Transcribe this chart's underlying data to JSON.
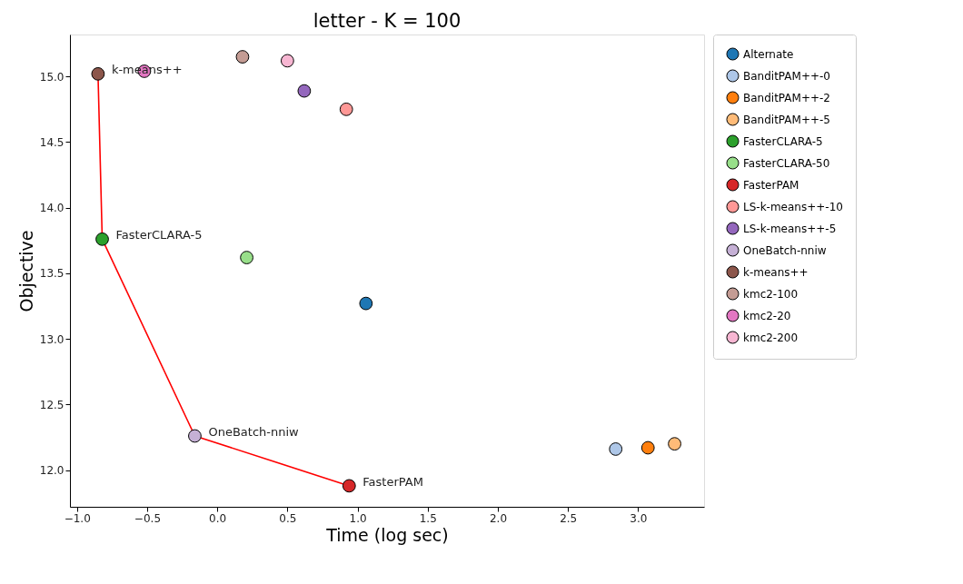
{
  "chart_data": {
    "type": "scatter",
    "title": "letter - K = 100",
    "xlabel": "Time (log sec)",
    "ylabel": "Objective",
    "xlim": [
      -1.05,
      3.47
    ],
    "ylim": [
      11.72,
      15.32
    ],
    "xticks": [
      {
        "value": -1.0,
        "label": "−1.0"
      },
      {
        "value": -0.5,
        "label": "−0.5"
      },
      {
        "value": 0.0,
        "label": "0.0"
      },
      {
        "value": 0.5,
        "label": "0.5"
      },
      {
        "value": 1.0,
        "label": "1.0"
      },
      {
        "value": 1.5,
        "label": "1.5"
      },
      {
        "value": 2.0,
        "label": "2.0"
      },
      {
        "value": 2.5,
        "label": "2.5"
      },
      {
        "value": 3.0,
        "label": "3.0"
      }
    ],
    "yticks": [
      {
        "value": 12.0,
        "label": "12.0"
      },
      {
        "value": 12.5,
        "label": "12.5"
      },
      {
        "value": 13.0,
        "label": "13.0"
      },
      {
        "value": 13.5,
        "label": "13.5"
      },
      {
        "value": 14.0,
        "label": "14.0"
      },
      {
        "value": 14.5,
        "label": "14.5"
      },
      {
        "value": 15.0,
        "label": "15.0"
      }
    ],
    "grid": false,
    "legend": "right",
    "marker": "circle",
    "series": [
      {
        "type": "line",
        "color": "#ff0000",
        "x": [
          -0.85,
          -0.82,
          -0.16,
          0.94
        ],
        "values": [
          15.02,
          13.76,
          12.26,
          11.88
        ],
        "line_style": "solid",
        "marker": "none"
      },
      {
        "name": "Alternate",
        "color": "#1f77b4",
        "x": [
          1.06
        ],
        "values": [
          13.27
        ]
      },
      {
        "name": "BanditPAM++-0",
        "color": "#aec7e8",
        "x": [
          2.84
        ],
        "values": [
          12.16
        ]
      },
      {
        "name": "BanditPAM++-2",
        "color": "#ff7f0e",
        "x": [
          3.07
        ],
        "values": [
          12.17
        ]
      },
      {
        "name": "BanditPAM++-5",
        "color": "#ffbb78",
        "x": [
          3.26
        ],
        "values": [
          12.2
        ]
      },
      {
        "name": "FasterCLARA-5",
        "color": "#2ca02c",
        "x": [
          -0.82
        ],
        "values": [
          13.76
        ]
      },
      {
        "name": "FasterCLARA-50",
        "color": "#98df8a",
        "x": [
          0.21
        ],
        "values": [
          13.62
        ]
      },
      {
        "name": "FasterPAM",
        "color": "#d62728",
        "x": [
          0.94
        ],
        "values": [
          11.88
        ]
      },
      {
        "name": "LS-k-means++-10",
        "color": "#ff9896",
        "x": [
          0.92
        ],
        "values": [
          14.75
        ]
      },
      {
        "name": "LS-k-means++-5",
        "color": "#9467bd",
        "x": [
          0.62
        ],
        "values": [
          14.89
        ]
      },
      {
        "name": "OneBatch-nniw",
        "color": "#c5b0d5",
        "x": [
          -0.16
        ],
        "values": [
          12.26
        ]
      },
      {
        "name": "k-means++",
        "color": "#8c564b",
        "x": [
          -0.85
        ],
        "values": [
          15.02
        ]
      },
      {
        "name": "kmc2-100",
        "color": "#c49c94",
        "x": [
          0.18
        ],
        "values": [
          15.15
        ]
      },
      {
        "name": "kmc2-20",
        "color": "#e377c2",
        "x": [
          -0.52
        ],
        "values": [
          15.04
        ]
      },
      {
        "name": "kmc2-200",
        "color": "#f7b6d2",
        "x": [
          0.5
        ],
        "values": [
          15.12
        ]
      }
    ],
    "annotations": [
      {
        "text": "k-means++",
        "x": -0.85,
        "y": 15.02
      },
      {
        "text": "FasterCLARA-5",
        "x": -0.82,
        "y": 13.76
      },
      {
        "text": "OneBatch-nniw",
        "x": -0.16,
        "y": 12.26
      },
      {
        "text": "FasterPAM",
        "x": 0.94,
        "y": 11.88
      }
    ]
  }
}
